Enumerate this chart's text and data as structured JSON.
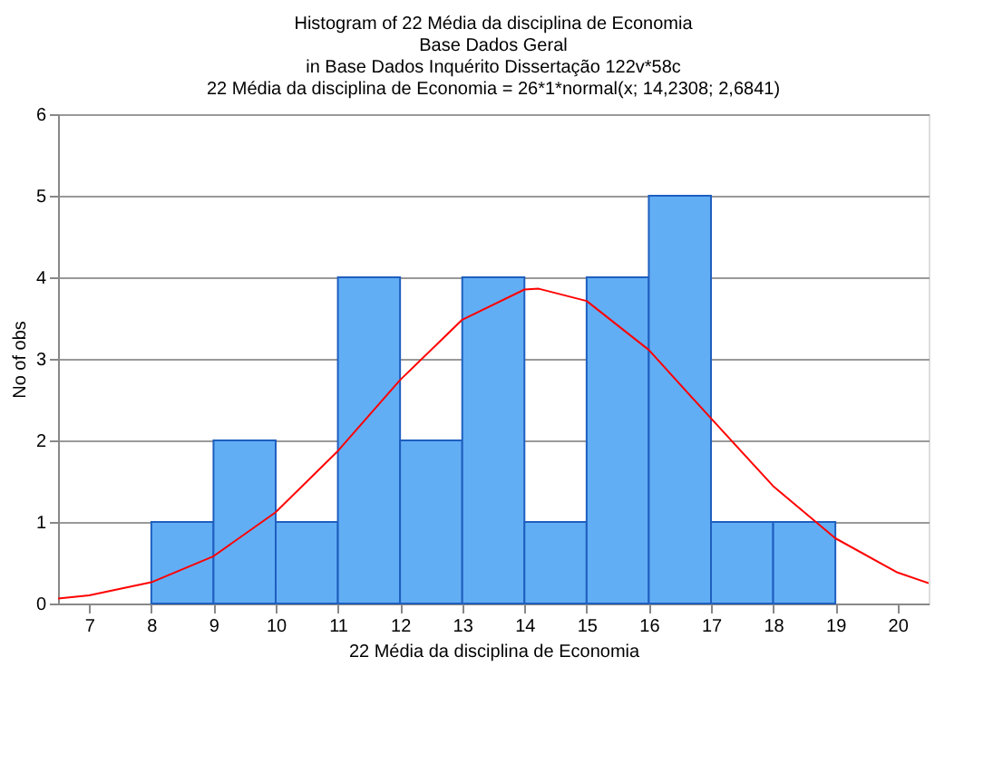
{
  "chart_data": {
    "type": "histogram",
    "title": "Histogram of 22 Média da disciplina de Economia",
    "subtitle": "Base Dados Geral\nin Base Dados Inquérito Dissertação 122v*58c\n22 Média da disciplina de Economia = 26*1*normal(x; 14,2308; 2,6841)",
    "xlabel": "22 Média da disciplina de Economia",
    "ylabel": "No of obs",
    "bins": [
      8,
      9,
      10,
      11,
      12,
      13,
      14,
      15,
      16,
      17,
      18,
      19
    ],
    "values": [
      1,
      2,
      1,
      4,
      2,
      4,
      1,
      4,
      5,
      1,
      1
    ],
    "color": "#62aef5",
    "series": [
      {
        "type": "line",
        "color": "#ff0000",
        "x": [
          6.5,
          7,
          8,
          9,
          10,
          11,
          12,
          13,
          14,
          14.23,
          15,
          16,
          17,
          18,
          19,
          20,
          20.5
        ],
        "values": [
          0.06,
          0.1,
          0.26,
          0.58,
          1.12,
          1.87,
          2.74,
          3.48,
          3.85,
          3.86,
          3.71,
          3.11,
          2.27,
          1.44,
          0.8,
          0.38,
          0.25
        ]
      }
    ],
    "xlim": [
      6.5,
      20.5
    ],
    "xticks": [
      7,
      8,
      9,
      10,
      11,
      12,
      13,
      14,
      15,
      16,
      17,
      18,
      19,
      20
    ],
    "ylim": [
      0,
      6
    ],
    "yticks": [
      0,
      1,
      2,
      3,
      4,
      5,
      6
    ],
    "grid": "y"
  }
}
